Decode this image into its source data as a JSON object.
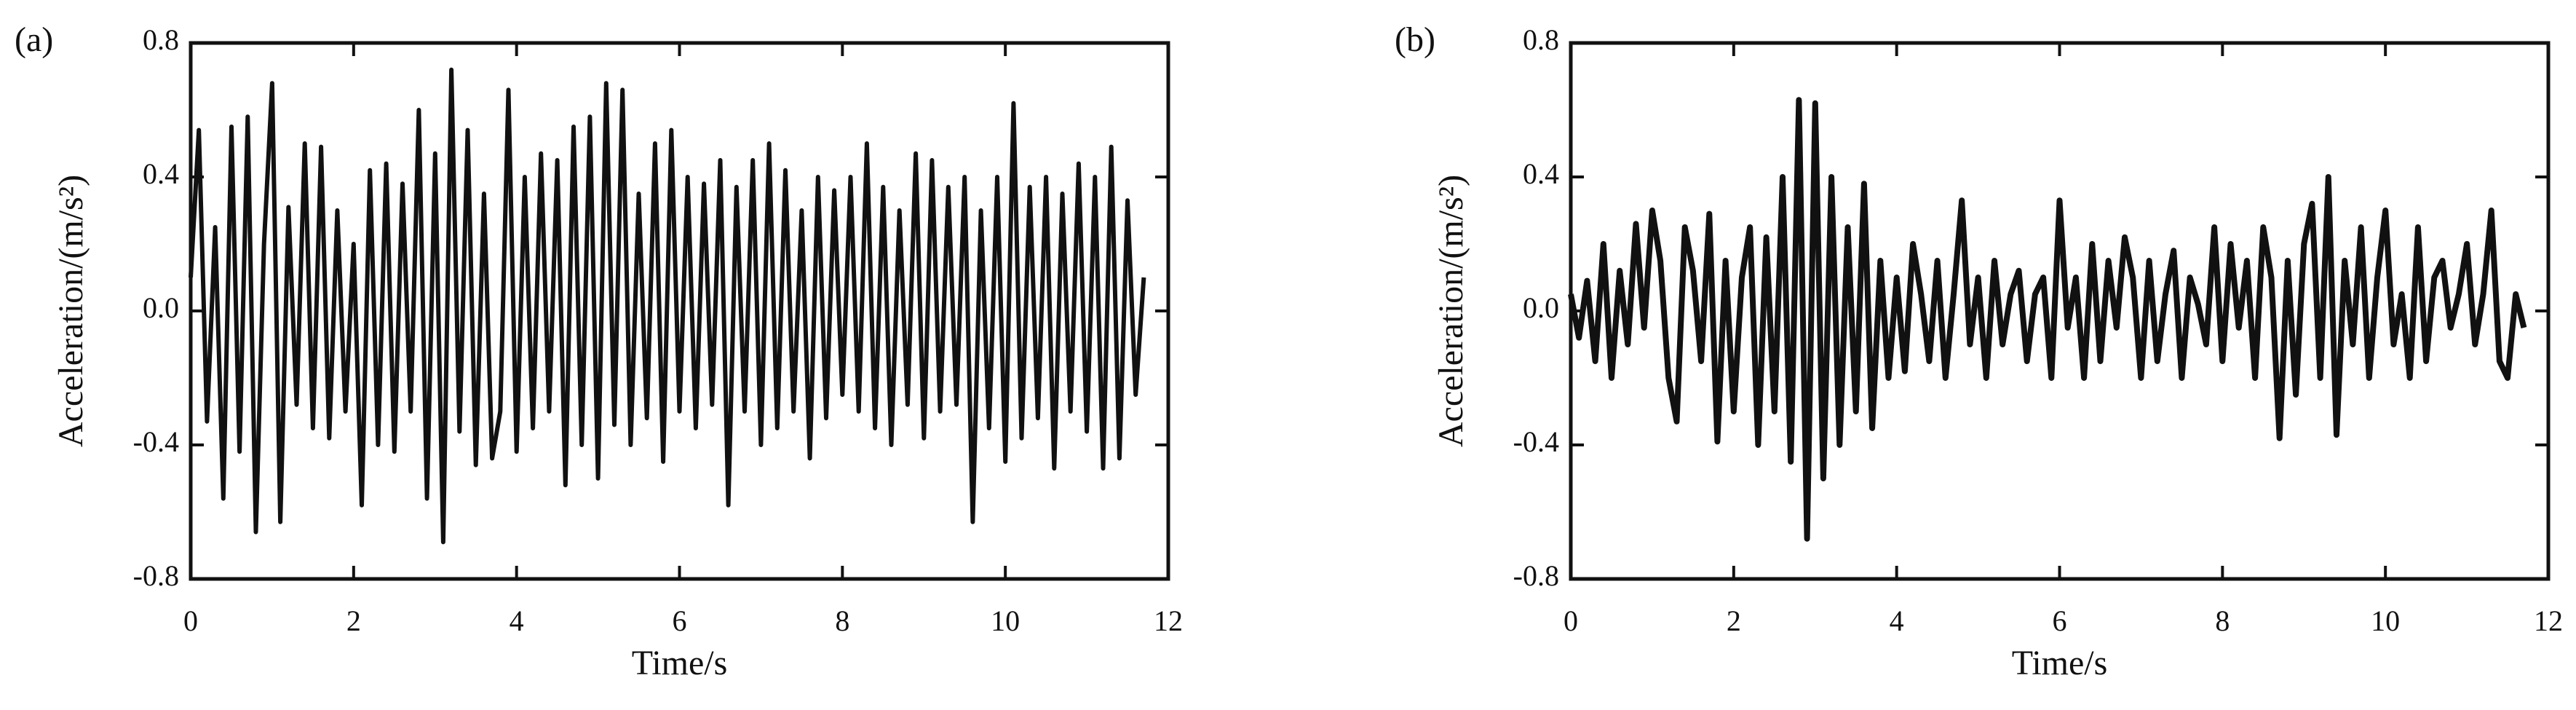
{
  "chart_data": [
    {
      "type": "line",
      "panel_label": "(a)",
      "x_label": "Time/s",
      "y_label": "Acceleration/(m/s²)",
      "color": "#111111",
      "xlim": [
        0,
        12
      ],
      "ylim": [
        -0.8,
        0.8
      ],
      "xticks": [
        0,
        2,
        4,
        6,
        8,
        10,
        12
      ],
      "yticks": [
        -0.8,
        -0.4,
        {
          "value": 0,
          "label": "0.0"
        },
        0.4,
        0.8
      ],
      "x": [
        0,
        0.1,
        0.2,
        0.3,
        0.4,
        0.5,
        0.6,
        0.7,
        0.8,
        0.9,
        1,
        1.1,
        1.2,
        1.3,
        1.4,
        1.5,
        1.6,
        1.7,
        1.8,
        1.9,
        2,
        2.1,
        2.2,
        2.3,
        2.4,
        2.5,
        2.6,
        2.7,
        2.8,
        2.9,
        3,
        3.1,
        3.2,
        3.3,
        3.4,
        3.5,
        3.6,
        3.7,
        3.8,
        3.9,
        4,
        4.1,
        4.2,
        4.3,
        4.4,
        4.5,
        4.6,
        4.7,
        4.8,
        4.9,
        5,
        5.1,
        5.2,
        5.3,
        5.4,
        5.5,
        5.6,
        5.7,
        5.8,
        5.9,
        6,
        6.1,
        6.2,
        6.3,
        6.4,
        6.5,
        6.6,
        6.7,
        6.8,
        6.9,
        7,
        7.1,
        7.2,
        7.3,
        7.4,
        7.5,
        7.6,
        7.7,
        7.8,
        7.9,
        8,
        8.1,
        8.2,
        8.3,
        8.4,
        8.5,
        8.6,
        8.7,
        8.8,
        8.9,
        9,
        9.1,
        9.2,
        9.3,
        9.4,
        9.5,
        9.6,
        9.7,
        9.8,
        9.9,
        10,
        10.1,
        10.2,
        10.3,
        10.4,
        10.5,
        10.6,
        10.7,
        10.8,
        10.9,
        11,
        11.1,
        11.2,
        11.3,
        11.4,
        11.5,
        11.6,
        11.7
      ],
      "values": [
        0.1,
        0.54,
        -0.33,
        0.25,
        -0.56,
        0.55,
        -0.42,
        0.58,
        -0.66,
        0.2,
        0.68,
        -0.63,
        0.31,
        -0.28,
        0.5,
        -0.35,
        0.49,
        -0.38,
        0.3,
        -0.3,
        0.2,
        -0.58,
        0.42,
        -0.4,
        0.44,
        -0.42,
        0.38,
        -0.3,
        0.6,
        -0.56,
        0.47,
        -0.69,
        0.72,
        -0.36,
        0.54,
        -0.46,
        0.35,
        -0.44,
        -0.3,
        0.66,
        -0.42,
        0.4,
        -0.35,
        0.47,
        -0.3,
        0.45,
        -0.52,
        0.55,
        -0.4,
        0.58,
        -0.5,
        0.68,
        -0.34,
        0.66,
        -0.4,
        0.35,
        -0.32,
        0.5,
        -0.45,
        0.54,
        -0.3,
        0.4,
        -0.35,
        0.38,
        -0.28,
        0.45,
        -0.58,
        0.37,
        -0.3,
        0.45,
        -0.4,
        0.5,
        -0.35,
        0.42,
        -0.3,
        0.3,
        -0.44,
        0.4,
        -0.32,
        0.36,
        -0.25,
        0.4,
        -0.3,
        0.5,
        -0.35,
        0.37,
        -0.4,
        0.3,
        -0.28,
        0.47,
        -0.38,
        0.45,
        -0.3,
        0.37,
        -0.28,
        0.4,
        -0.63,
        0.3,
        -0.35,
        0.4,
        -0.45,
        0.62,
        -0.38,
        0.37,
        -0.32,
        0.4,
        -0.47,
        0.35,
        -0.3,
        0.44,
        -0.36,
        0.4,
        -0.47,
        0.49,
        -0.44,
        0.33,
        -0.25,
        0.1
      ]
    },
    {
      "type": "line",
      "panel_label": "(b)",
      "x_label": "Time/s",
      "y_label": "Acceleration/(m/s²)",
      "color": "#111111",
      "xlim": [
        0,
        12
      ],
      "ylim": [
        -0.8,
        0.8
      ],
      "xticks": [
        0,
        2,
        4,
        6,
        8,
        10,
        12
      ],
      "yticks": [
        -0.8,
        -0.4,
        {
          "value": 0,
          "label": "0.0"
        },
        0.4,
        0.8
      ],
      "x": [
        0,
        0.1,
        0.2,
        0.3,
        0.4,
        0.5,
        0.6,
        0.7,
        0.8,
        0.9,
        1,
        1.1,
        1.2,
        1.3,
        1.4,
        1.5,
        1.6,
        1.7,
        1.8,
        1.9,
        2,
        2.1,
        2.2,
        2.3,
        2.4,
        2.5,
        2.6,
        2.7,
        2.8,
        2.9,
        3,
        3.1,
        3.2,
        3.3,
        3.4,
        3.5,
        3.6,
        3.7,
        3.8,
        3.9,
        4,
        4.1,
        4.2,
        4.3,
        4.4,
        4.5,
        4.6,
        4.7,
        4.8,
        4.9,
        5,
        5.1,
        5.2,
        5.3,
        5.4,
        5.5,
        5.6,
        5.7,
        5.8,
        5.9,
        6,
        6.1,
        6.2,
        6.3,
        6.4,
        6.5,
        6.6,
        6.7,
        6.8,
        6.9,
        7,
        7.1,
        7.2,
        7.3,
        7.4,
        7.5,
        7.6,
        7.7,
        7.8,
        7.9,
        8,
        8.1,
        8.2,
        8.3,
        8.4,
        8.5,
        8.6,
        8.7,
        8.8,
        8.9,
        9,
        9.1,
        9.2,
        9.3,
        9.4,
        9.5,
        9.6,
        9.7,
        9.8,
        9.9,
        10,
        10.1,
        10.2,
        10.3,
        10.4,
        10.5,
        10.6,
        10.7,
        10.8,
        10.9,
        11,
        11.1,
        11.2,
        11.3,
        11.4,
        11.5,
        11.6,
        11.7
      ],
      "values": [
        0.05,
        -0.08,
        0.09,
        -0.15,
        0.2,
        -0.2,
        0.12,
        -0.1,
        0.26,
        -0.05,
        0.3,
        0.15,
        -0.2,
        -0.33,
        0.25,
        0.12,
        -0.15,
        0.29,
        -0.39,
        0.15,
        -0.3,
        0.1,
        0.25,
        -0.4,
        0.22,
        -0.3,
        0.4,
        -0.45,
        0.63,
        -0.68,
        0.62,
        -0.5,
        0.4,
        -0.4,
        0.25,
        -0.3,
        0.38,
        -0.35,
        0.15,
        -0.2,
        0.1,
        -0.18,
        0.2,
        0.05,
        -0.15,
        0.15,
        -0.2,
        0.05,
        0.33,
        -0.1,
        0.1,
        -0.2,
        0.15,
        -0.1,
        0.05,
        0.12,
        -0.15,
        0.05,
        0.1,
        -0.2,
        0.33,
        -0.05,
        0.1,
        -0.2,
        0.2,
        -0.15,
        0.15,
        -0.05,
        0.22,
        0.1,
        -0.2,
        0.15,
        -0.15,
        0.05,
        0.18,
        -0.2,
        0.1,
        0.02,
        -0.1,
        0.25,
        -0.15,
        0.2,
        -0.05,
        0.15,
        -0.2,
        0.25,
        0.1,
        -0.38,
        0.15,
        -0.25,
        0.2,
        0.32,
        -0.2,
        0.4,
        -0.37,
        0.15,
        -0.1,
        0.25,
        -0.2,
        0.1,
        0.3,
        -0.1,
        0.05,
        -0.2,
        0.25,
        -0.15,
        0.1,
        0.15,
        -0.05,
        0.05,
        0.2,
        -0.1,
        0.05,
        0.3,
        -0.15,
        -0.2,
        0.05,
        -0.05
      ]
    }
  ]
}
